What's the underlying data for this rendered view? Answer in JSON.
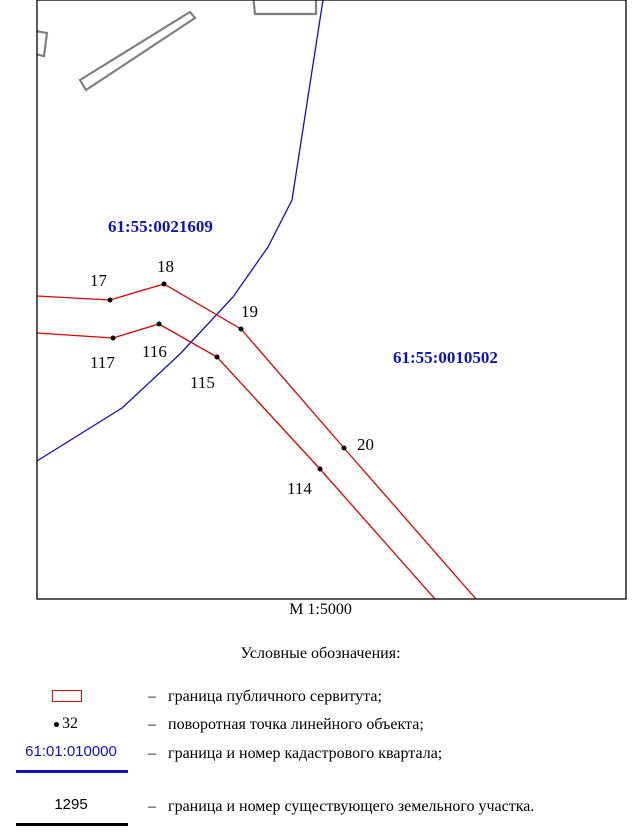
{
  "map": {
    "cadastral_quarters": [
      "61:55:0021609",
      "61:55:0010502"
    ],
    "points": [
      "17",
      "18",
      "19",
      "20",
      "114",
      "115",
      "116",
      "117"
    ],
    "colors": {
      "servitude_boundary": "#e00000",
      "quarter_boundary": "#1010c0",
      "existing_parcel": "#808080"
    }
  },
  "scale": "М 1:5000",
  "legend": {
    "title": "Условные обозначения:",
    "dash": "–",
    "items": {
      "servitude": {
        "desc": "граница публичного сервитута;"
      },
      "turn_point": {
        "symbol": "32",
        "desc": "поворотная точка линейного объекта;"
      },
      "quarter": {
        "symbol": "61:01:010000",
        "desc": "граница и номер кадастрового квартала;"
      },
      "parcel": {
        "symbol": "1295",
        "desc": "граница и номер существующего земельного участка."
      }
    }
  }
}
